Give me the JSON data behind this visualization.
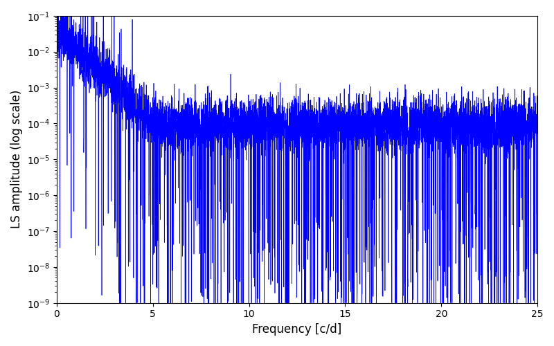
{
  "xlabel": "Frequency [c/d]",
  "ylabel": "LS amplitude (log scale)",
  "line_color": "#0000ff",
  "xlim": [
    0,
    25
  ],
  "ylim": [
    1e-09,
    0.1
  ],
  "freq_min": 0.0,
  "freq_max": 25.0,
  "n_points": 8000,
  "seed": 42,
  "background_color": "#ffffff",
  "figsize": [
    8.0,
    5.0
  ],
  "dpi": 100
}
